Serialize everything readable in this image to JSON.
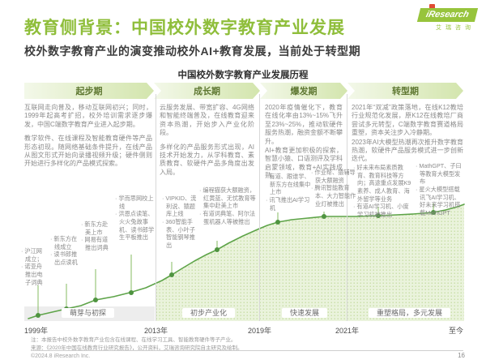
{
  "page": {
    "title": "教育侧背景：中国校外数字教育产业发展",
    "subtitle": "校外数字教育产业的演变推动校外AI+教育发展，当前处于转型期",
    "chart_title": "中国校外数字教育产业发展历程",
    "logo": {
      "brand": "iResearch",
      "brand_cn": "艾瑞咨询"
    },
    "notes": [
      "注：本报告中校外数字教育产业包含在线课程、在线学习工具、智能教育硬件等子产业。",
      "来源：《2020年中国在线教育行业研究报告》，公开资料，艾瑞咨询研究院自主研究及绘制。"
    ],
    "footer": {
      "copyright": "©2024.8 iResearch Inc.",
      "page_number": "16"
    }
  },
  "colors": {
    "brand_green": "#97c43c",
    "title_green": "#8fbe3b",
    "curve_green": "#5ea449",
    "fill_green": "#eaf3dc",
    "stage_text": "#5e7731",
    "body_gray": "#8b8b8b"
  },
  "stages": [
    {
      "name": "起步期",
      "paragraphs": [
        "互联网走向普及，移动互联网初兴；同时，1999年起高考扩招，校外培训需求逐步爆发，中国C端数字教育产业进入起步期。",
        "教学软件、在线课程及智能教育硬件等产品形态初现。随网络基础条件提升，在线产品从图文形式开始向录播视频升级；硬件侧则开始进行多样化的产品模式探索。"
      ]
    },
    {
      "name": "成长期",
      "paragraphs": [
        "云服务发展、带宽扩容、4G网络和智能终端普及，在线教育迎来资本热潮，开始步入产业化阶段。",
        "多样化的产品服务形式出现，AI技术开始发力，从学科教育、素质教育、软硬件产品多角度出发入局。"
      ]
    },
    {
      "name": "爆发期",
      "paragraphs": [
        "2020年疫情催化下，教育在线化率由13%~15%飞升至23%~25%，推动软硬件服务热潮，融资金额不断攀升。",
        "AI+教育更加积极的探索，智慧小猿、口语测评及学科启蒙领域，教育+AI实践成熟。"
      ]
    },
    {
      "name": "转型期",
      "paragraphs": [
        "2021年“双减”政策落地，在线K12教培行业规范化发展，原K12在线教培厂商尝试多元转型，C端数字教育赛道格局重塑，资本关注步入冷静期。",
        "2023年AI大模型热潮再次推升数字教育热潮，软硬件产品服务模式进一步创新迭代。"
      ]
    }
  ],
  "phases": [
    "萌芽与初探",
    "初步产业化",
    "快速发展",
    "重塑格局，多元发展"
  ],
  "years": [
    "1999年",
    "2013年",
    "2019年",
    "2021年",
    "至今"
  ],
  "milestones": [
    {
      "items": [
        "沪江网成立；",
        "诺亚舟推出电子词典"
      ]
    },
    {
      "items": [
        "新东方在线成立",
        "读书郎推出点读机"
      ]
    },
    {
      "items": [
        "新东方赴美上市",
        "网易有道推出词典"
      ]
    },
    {
      "items": [
        "学而思网校上线",
        "洪恩点读笔、火火兔故事机、读书郎学生平板推出"
      ]
    },
    {
      "items": [
        "VIPKID、流利说、猿题库上线",
        "360智能手表、小叶子智能钢琴推出"
      ]
    },
    {
      "items": [
        "编程猫获大额融资，红黄蓝、无忧教育等集中赴美上市",
        "有道词典笔、阿尔法蛋机器人等被推出"
      ]
    },
    {
      "items": [
        "有道、跟谁学、新东方在线集中上市",
        "讯飞推出AI学习机"
      ]
    },
    {
      "items": [
        "作业帮、猿辅导获大额融资",
        "腾讯智能教育本、大力智能作业灯被推出"
      ]
    },
    {
      "items": [
        "好未来布局素质教育、教育科技等方向；高途重点发展K9素养、成人教育、海外留学等业务",
        "有道AI学习机、小度学习机被推出"
      ]
    },
    {
      "items": [
        "MathGPT、子曰等教育大模型发布",
        "星火大模型搭载讯飞AI学习机、好未来学习机搭载MathGPT"
      ]
    }
  ],
  "chart_data": {
    "type": "area",
    "title": "中国校外数字教育产业发展历程",
    "x_axis_ticks": [
      "1999年",
      "2013年",
      "2019年",
      "2021年",
      "至今"
    ],
    "y_axis": "产业发展程度（示意，无数值刻度）",
    "trend": "持续上升的S型成长曲线，1999年起步，2013-2019加速，2019后趋于平缓并继续上升",
    "stage_bands": [
      "起步期",
      "成长期",
      "爆发期",
      "转型期"
    ],
    "phase_bands": [
      "萌芽与初探",
      "初步产业化",
      "快速发展",
      "重塑格局，多元发展"
    ],
    "milestone_count": 10,
    "legend_position": "none",
    "grid": false
  }
}
